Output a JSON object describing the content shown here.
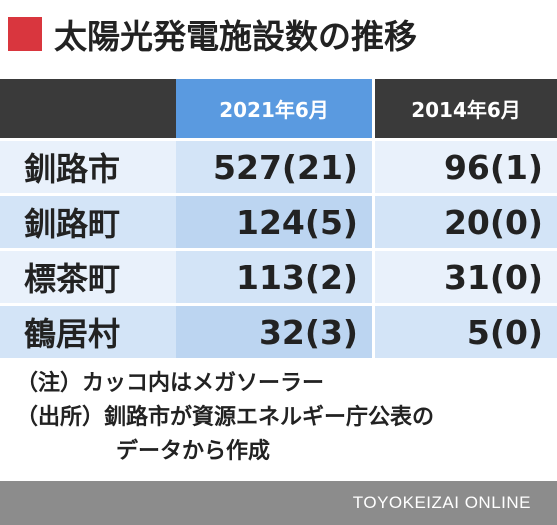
{
  "title": "太陽光発電施設数の推移",
  "colors": {
    "marker": "#d9363e",
    "header_dark": "#3a3a3a",
    "header_highlight": "#5a9ae0"
  },
  "chart_data": {
    "type": "table",
    "title": "太陽光発電施設数の推移",
    "columns": [
      "",
      "2021年6月",
      "2014年6月"
    ],
    "rows": [
      {
        "label": "釧路市",
        "v2021": "527(21)",
        "v2014": "96(1)"
      },
      {
        "label": "釧路町",
        "v2021": "124(5)",
        "v2014": "20(0)"
      },
      {
        "label": "標茶町",
        "v2021": "113(2)",
        "v2014": "31(0)"
      },
      {
        "label": "鶴居村",
        "v2021": "32(3)",
        "v2014": "5(0)"
      }
    ]
  },
  "notes": {
    "line1": "（注）カッコ内はメガソーラー",
    "line2": "（出所）釧路市が資源エネルギー庁公表の",
    "line3": "データから作成"
  },
  "footer": "TOYOKEIZAI ONLINE"
}
